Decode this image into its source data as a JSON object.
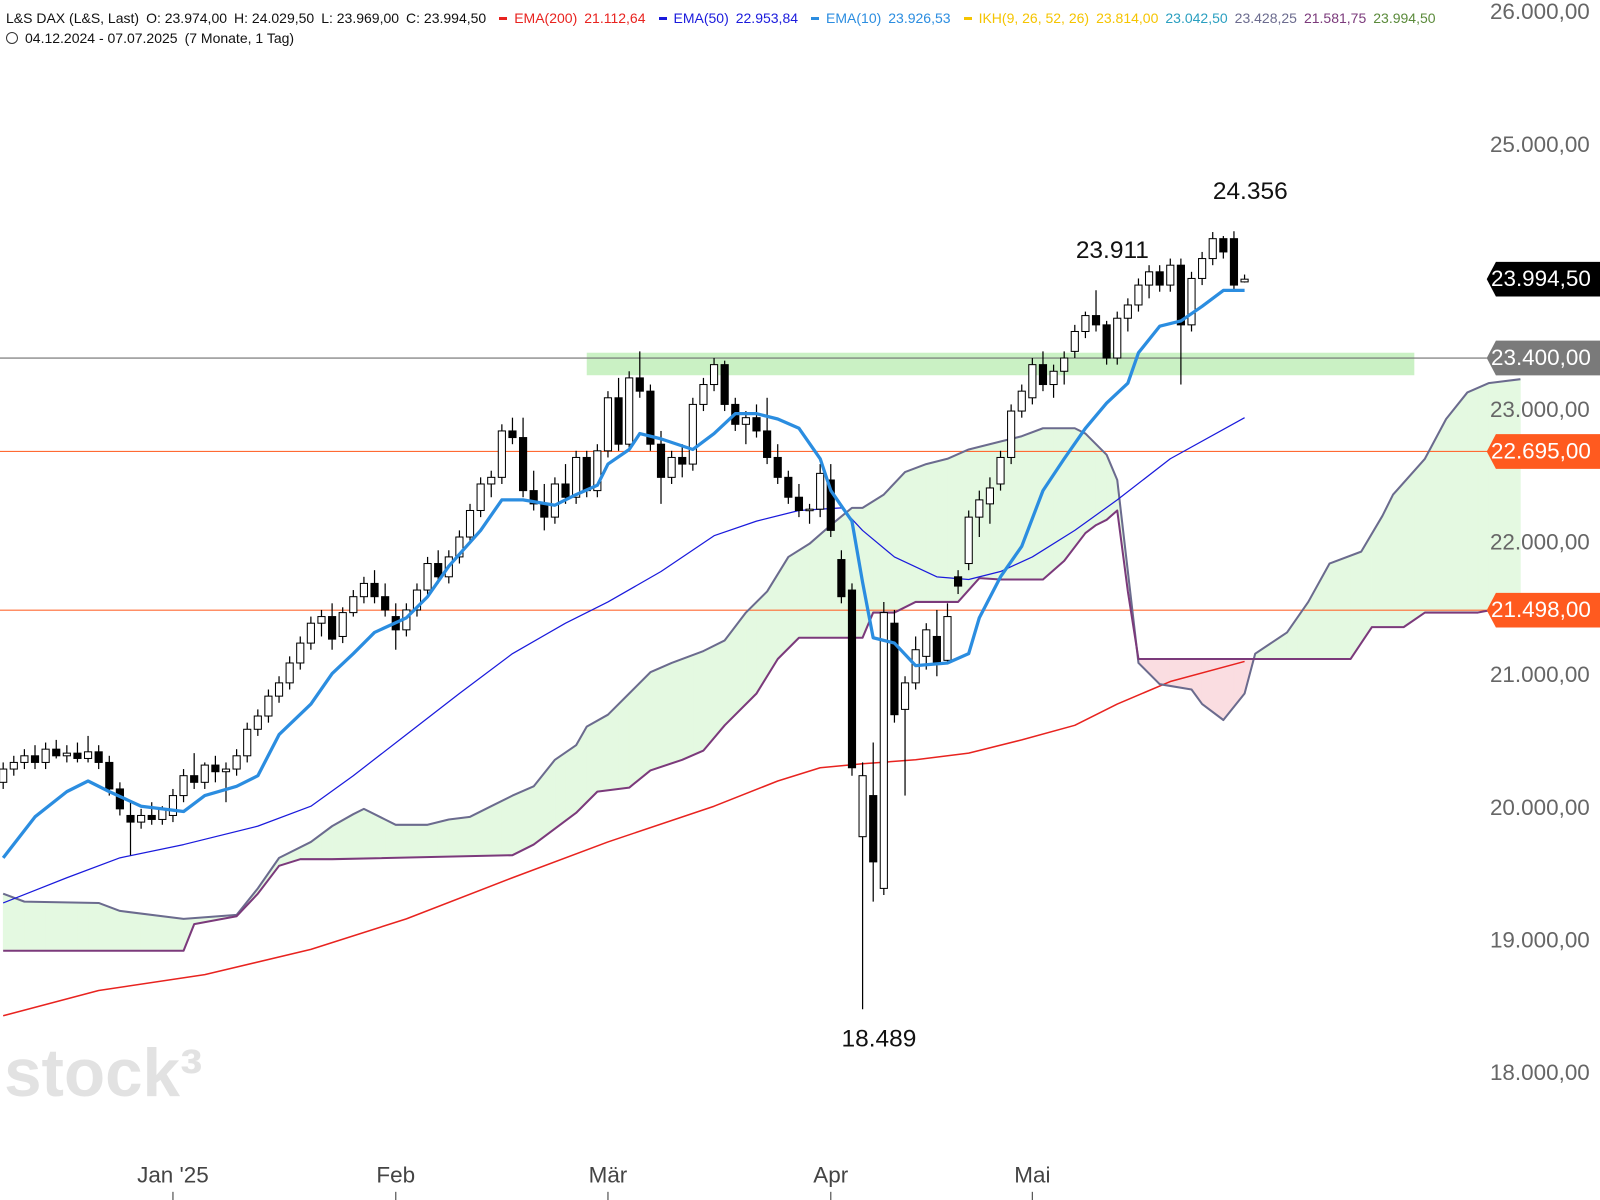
{
  "chart_data": {
    "type": "candlestick",
    "header": {
      "symbol": "L&S DAX (L&S, Last)",
      "ohlc": [
        "O: 23.974,00",
        "H: 24.029,50",
        "L: 23.969,00",
        "C: 23.994,50"
      ],
      "range": "04.12.2024 - 07.07.2025",
      "duration": "(7 Monate, 1 Tag)"
    },
    "watermark": "stock³",
    "xlim": [
      -0.3,
      150.5
    ],
    "ylim": [
      17050,
      26100
    ],
    "yticks": [
      {
        "value": 18000,
        "label": "18.000,00"
      },
      {
        "value": 19000,
        "label": "19.000,00"
      },
      {
        "value": 20000,
        "label": "20.000,00"
      },
      {
        "value": 21000,
        "label": "21.000,00"
      },
      {
        "value": 22000,
        "label": "22.000,00"
      },
      {
        "value": 23000,
        "label": "23.000,00"
      },
      {
        "value": 25000,
        "label": "25.000,00"
      },
      {
        "value": 26000,
        "label": "26.000,00"
      }
    ],
    "xticks": [
      {
        "value": 16,
        "label": "Jan '25"
      },
      {
        "value": 37,
        "label": "Feb"
      },
      {
        "value": 57,
        "label": "Mär"
      },
      {
        "value": 78,
        "label": "Apr"
      },
      {
        "value": 97,
        "label": "Mai"
      }
    ],
    "ohlc": [
      [
        20200,
        20350,
        20150,
        20300
      ],
      [
        20300,
        20400,
        20250,
        20350
      ],
      [
        20350,
        20450,
        20300,
        20400
      ],
      [
        20400,
        20480,
        20300,
        20350
      ],
      [
        20350,
        20500,
        20300,
        20450
      ],
      [
        20450,
        20520,
        20380,
        20400
      ],
      [
        20400,
        20480,
        20350,
        20420
      ],
      [
        20420,
        20500,
        20350,
        20380
      ],
      [
        20380,
        20550,
        20350,
        20430
      ],
      [
        20430,
        20480,
        20300,
        20350
      ],
      [
        20350,
        20400,
        20100,
        20150
      ],
      [
        20150,
        20200,
        19950,
        20000
      ],
      [
        19950,
        20050,
        19650,
        19900
      ],
      [
        19900,
        20000,
        19850,
        19950
      ],
      [
        19950,
        20050,
        19880,
        19920
      ],
      [
        19920,
        20020,
        19880,
        20000
      ],
      [
        19950,
        20150,
        19900,
        20100
      ],
      [
        20100,
        20300,
        20050,
        20250
      ],
      [
        20250,
        20420,
        20150,
        20200
      ],
      [
        20200,
        20350,
        20150,
        20330
      ],
      [
        20330,
        20400,
        20200,
        20280
      ],
      [
        20280,
        20350,
        20050,
        20300
      ],
      [
        20300,
        20450,
        20250,
        20400
      ],
      [
        20400,
        20650,
        20350,
        20600
      ],
      [
        20600,
        20750,
        20550,
        20700
      ],
      [
        20700,
        20900,
        20650,
        20850
      ],
      [
        20850,
        21000,
        20800,
        20950
      ],
      [
        20950,
        21150,
        20900,
        21100
      ],
      [
        21100,
        21300,
        21050,
        21250
      ],
      [
        21250,
        21450,
        21200,
        21400
      ],
      [
        21400,
        21500,
        21300,
        21450
      ],
      [
        21450,
        21550,
        21200,
        21280
      ],
      [
        21300,
        21520,
        21250,
        21480
      ],
      [
        21480,
        21650,
        21450,
        21600
      ],
      [
        21600,
        21750,
        21550,
        21700
      ],
      [
        21700,
        21800,
        21550,
        21600
      ],
      [
        21600,
        21700,
        21450,
        21500
      ],
      [
        21450,
        21550,
        21200,
        21350
      ],
      [
        21350,
        21550,
        21300,
        21500
      ],
      [
        21500,
        21700,
        21450,
        21650
      ],
      [
        21650,
        21900,
        21600,
        21850
      ],
      [
        21850,
        21950,
        21700,
        21750
      ],
      [
        21750,
        21950,
        21700,
        21900
      ],
      [
        21900,
        22100,
        21850,
        22050
      ],
      [
        22050,
        22300,
        22000,
        22250
      ],
      [
        22250,
        22500,
        22200,
        22450
      ],
      [
        22450,
        22550,
        22350,
        22500
      ],
      [
        22500,
        22900,
        22450,
        22850
      ],
      [
        22850,
        22950,
        22750,
        22800
      ],
      [
        22800,
        22950,
        22350,
        22400
      ],
      [
        22400,
        22550,
        22250,
        22300
      ],
      [
        22300,
        22450,
        22100,
        22200
      ],
      [
        22200,
        22500,
        22150,
        22450
      ],
      [
        22450,
        22600,
        22300,
        22350
      ],
      [
        22350,
        22700,
        22300,
        22650
      ],
      [
        22650,
        22700,
        22350,
        22400
      ],
      [
        22400,
        22750,
        22350,
        22700
      ],
      [
        22700,
        23150,
        22650,
        23100
      ],
      [
        23100,
        23250,
        22700,
        22750
      ],
      [
        22750,
        23300,
        22700,
        23250
      ],
      [
        23250,
        23450,
        23100,
        23150
      ],
      [
        23150,
        23200,
        22700,
        22750
      ],
      [
        22750,
        22850,
        22300,
        22500
      ],
      [
        22500,
        22700,
        22450,
        22650
      ],
      [
        22650,
        22750,
        22500,
        22600
      ],
      [
        22600,
        23100,
        22550,
        23050
      ],
      [
        23050,
        23250,
        23000,
        23200
      ],
      [
        23200,
        23400,
        23150,
        23350
      ],
      [
        23350,
        23380,
        23000,
        23050
      ],
      [
        23050,
        23100,
        22850,
        22900
      ],
      [
        22900,
        23000,
        22750,
        22950
      ],
      [
        22950,
        23050,
        22800,
        22850
      ],
      [
        22850,
        23100,
        22600,
        22650
      ],
      [
        22650,
        22750,
        22450,
        22500
      ],
      [
        22500,
        22550,
        22300,
        22350
      ],
      [
        22350,
        22450,
        22200,
        22250
      ],
      [
        22250,
        22300,
        22150,
        22260
      ],
      [
        22260,
        22600,
        22200,
        22530
      ],
      [
        22480,
        22600,
        22050,
        22100
      ],
      [
        21880,
        21950,
        21550,
        21600
      ],
      [
        21650,
        21700,
        20250,
        20310
      ],
      [
        19790,
        20350,
        18489,
        20250
      ],
      [
        20100,
        20500,
        19300,
        19600
      ],
      [
        19400,
        21560,
        19350,
        21480
      ],
      [
        21400,
        21500,
        20650,
        20710
      ],
      [
        20750,
        21000,
        20100,
        20950
      ],
      [
        20950,
        21300,
        20900,
        21200
      ],
      [
        21150,
        21400,
        21050,
        21350
      ],
      [
        21300,
        21500,
        21000,
        21100
      ],
      [
        21120,
        21550,
        21100,
        21450
      ],
      [
        21750,
        21800,
        21620,
        21680
      ],
      [
        21850,
        22250,
        21800,
        22200
      ],
      [
        22200,
        22400,
        22050,
        22330
      ],
      [
        22300,
        22500,
        22150,
        22420
      ],
      [
        22450,
        22700,
        22400,
        22650
      ],
      [
        22650,
        23050,
        22600,
        23000
      ],
      [
        23000,
        23200,
        22950,
        23150
      ],
      [
        23100,
        23400,
        23050,
        23350
      ],
      [
        23350,
        23450,
        23150,
        23200
      ],
      [
        23200,
        23350,
        23100,
        23300
      ],
      [
        23300,
        23450,
        23200,
        23400
      ],
      [
        23450,
        23650,
        23400,
        23600
      ],
      [
        23600,
        23750,
        23550,
        23720
      ],
      [
        23720,
        23911,
        23600,
        23650
      ],
      [
        23650,
        23680,
        23350,
        23400
      ],
      [
        23400,
        23750,
        23350,
        23700
      ],
      [
        23700,
        23850,
        23600,
        23800
      ],
      [
        23800,
        24000,
        23750,
        23950
      ],
      [
        23950,
        24100,
        23850,
        24050
      ],
      [
        24050,
        24100,
        23900,
        23950
      ],
      [
        23950,
        24150,
        23900,
        24100
      ],
      [
        24100,
        24150,
        23200,
        23650
      ],
      [
        23650,
        24050,
        23600,
        24000
      ],
      [
        24000,
        24200,
        23950,
        24150
      ],
      [
        24150,
        24350,
        24100,
        24300
      ],
      [
        24300,
        24320,
        24150,
        24200
      ],
      [
        24300,
        24356,
        23900,
        23950
      ],
      [
        23974,
        24029.5,
        23969,
        23994.5
      ]
    ],
    "up_color": "#ffffff",
    "down_color": "#000000",
    "wick_color": "#000000",
    "series": [
      {
        "name": "EMA(200)",
        "legend_value": "21.112,64",
        "color": "#e8231f",
        "width": 1.5,
        "x": [
          0,
          9,
          19,
          29,
          38,
          48,
          57,
          67,
          73,
          77,
          81,
          86,
          91,
          96,
          101,
          105,
          110,
          117
        ],
        "values": [
          18440,
          18630,
          18750,
          18940,
          19170,
          19480,
          19750,
          20020,
          20210,
          20310,
          20340,
          20370,
          20420,
          20520,
          20630,
          20790,
          20960,
          21112
        ]
      },
      {
        "name": "EMA(50)",
        "legend_value": "22.953,84",
        "color": "#1a1adc",
        "width": 1.2,
        "x": [
          0,
          6,
          11,
          17,
          24,
          29,
          33,
          38,
          43,
          48,
          53,
          57,
          62,
          67,
          71,
          75,
          79,
          81,
          84,
          88,
          91,
          94,
          97,
          101,
          105,
          110,
          117
        ],
        "values": [
          19290,
          19480,
          19630,
          19730,
          19870,
          20020,
          20250,
          20560,
          20870,
          21170,
          21400,
          21560,
          21790,
          22060,
          22170,
          22250,
          22270,
          22100,
          21900,
          21750,
          21730,
          21790,
          21900,
          22100,
          22330,
          22640,
          22950
        ]
      },
      {
        "name": "EMA(10)",
        "legend_value": "23.926,53",
        "color": "#2b8de0",
        "width": 3.2,
        "x": [
          0,
          3,
          6,
          8,
          10,
          13,
          17,
          19,
          22,
          24,
          26,
          29,
          31,
          33,
          35,
          38,
          40,
          42,
          45,
          47,
          49,
          52,
          54,
          56,
          57,
          59,
          60,
          62,
          65,
          67,
          69,
          71,
          73,
          75,
          77,
          78,
          80,
          81,
          82,
          84,
          86,
          89,
          91,
          92,
          94,
          96,
          98,
          100,
          102,
          104,
          106,
          107,
          109,
          111,
          113,
          115,
          117
        ],
        "values": [
          19630,
          19940,
          20130,
          20210,
          20130,
          20020,
          19980,
          20100,
          20170,
          20250,
          20560,
          20790,
          21020,
          21170,
          21330,
          21440,
          21600,
          21830,
          22100,
          22330,
          22330,
          22290,
          22370,
          22440,
          22600,
          22710,
          22830,
          22790,
          22710,
          22830,
          22980,
          22980,
          22940,
          22870,
          22640,
          22400,
          22170,
          21710,
          21290,
          21250,
          21080,
          21100,
          21170,
          21440,
          21750,
          21980,
          22400,
          22640,
          22870,
          23060,
          23210,
          23440,
          23640,
          23680,
          23790,
          23910,
          23910
        ]
      }
    ],
    "ichimoku": {
      "name": "IKH(9, 26, 52, 26)",
      "color": "#f5c400",
      "legend_values": [
        {
          "label": "23.814,00",
          "color": "#f5c400"
        },
        {
          "label": "23.042,50",
          "color": "#2a9fc0"
        },
        {
          "label": "23.428,25",
          "color": "#6b6b8e"
        },
        {
          "label": "21.581,75",
          "color": "#7b3a7b"
        },
        {
          "label": "23.994,50",
          "color": "#5a8a3a"
        }
      ],
      "cloud_up": "#e4f9e1",
      "cloud_down": "#fadde1",
      "span_a": {
        "color": "#6b6b8e",
        "x": [
          0,
          2,
          9,
          11,
          17,
          22,
          24,
          26,
          29,
          31,
          33,
          34,
          36,
          37,
          40,
          42,
          44,
          46,
          48,
          50,
          52,
          54,
          55,
          57,
          59,
          61,
          63,
          66,
          68,
          70,
          72,
          74,
          76,
          78,
          80,
          81,
          83,
          85,
          87,
          89,
          91,
          94,
          96,
          98,
          101,
          102,
          104,
          105,
          106,
          107,
          109,
          112,
          113,
          115,
          117,
          118,
          121,
          123,
          125,
          128,
          130,
          131,
          134,
          136,
          138,
          140,
          143
        ],
        "values": [
          19360,
          19300,
          19290,
          19230,
          19170,
          19200,
          19400,
          19630,
          19750,
          19870,
          19960,
          20000,
          19920,
          19880,
          19880,
          19920,
          19940,
          20020,
          20100,
          20170,
          20370,
          20480,
          20620,
          20710,
          20870,
          21030,
          21100,
          21190,
          21270,
          21480,
          21640,
          21900,
          22000,
          22140,
          22270,
          22270,
          22370,
          22540,
          22600,
          22640,
          22710,
          22770,
          22810,
          22870,
          22870,
          22830,
          22670,
          22480,
          21790,
          21100,
          20940,
          20900,
          20790,
          20670,
          20870,
          21170,
          21330,
          21560,
          21850,
          21940,
          22210,
          22370,
          22640,
          22940,
          23140,
          23210,
          23240
        ]
      },
      "span_b": {
        "color": "#7b3a7b",
        "x": [
          0,
          17,
          18,
          22,
          24,
          26,
          28,
          31,
          48,
          50,
          54,
          56,
          59,
          61,
          64,
          66,
          68,
          71,
          73,
          75,
          81,
          82,
          84,
          86,
          90,
          92,
          94,
          98,
          100,
          102,
          103,
          104,
          105,
          106,
          107,
          117,
          127,
          129,
          132,
          134,
          139,
          143
        ],
        "values": [
          18930,
          18930,
          19130,
          19190,
          19360,
          19570,
          19620,
          19620,
          19650,
          19730,
          19970,
          20130,
          20160,
          20290,
          20370,
          20440,
          20630,
          20870,
          21130,
          21290,
          21290,
          21480,
          21480,
          21560,
          21560,
          21740,
          21730,
          21730,
          21870,
          22080,
          22140,
          22180,
          22250,
          21640,
          21130,
          21130,
          21130,
          21370,
          21370,
          21480,
          21480,
          21540
        ]
      }
    },
    "zone": {
      "x": [
        55,
        133
      ],
      "y": [
        23270,
        23440
      ],
      "color": "#c4efbe"
    },
    "levels": [
      {
        "value": 23400,
        "label": "23.400,00",
        "color": "#7a7a7a",
        "line_color": "#6f6f6f"
      },
      {
        "value": 22695,
        "label": "22.695,00",
        "color": "#ff5a1f",
        "line_color": "#ff6a33"
      },
      {
        "value": 21498,
        "label": "21.498,00",
        "color": "#ff5a1f",
        "line_color": "#ff6a33"
      }
    ],
    "last_price": {
      "value": 23994.5,
      "label": "23.994,50",
      "color": "#000000"
    },
    "annotations": [
      {
        "x": 116,
        "value": 24356,
        "label": "24.356",
        "position": "above"
      },
      {
        "x": 103,
        "value": 23911,
        "label": "23.911",
        "position": "above"
      },
      {
        "x": 81,
        "value": 18489,
        "label": "18.489",
        "position": "below"
      }
    ]
  }
}
